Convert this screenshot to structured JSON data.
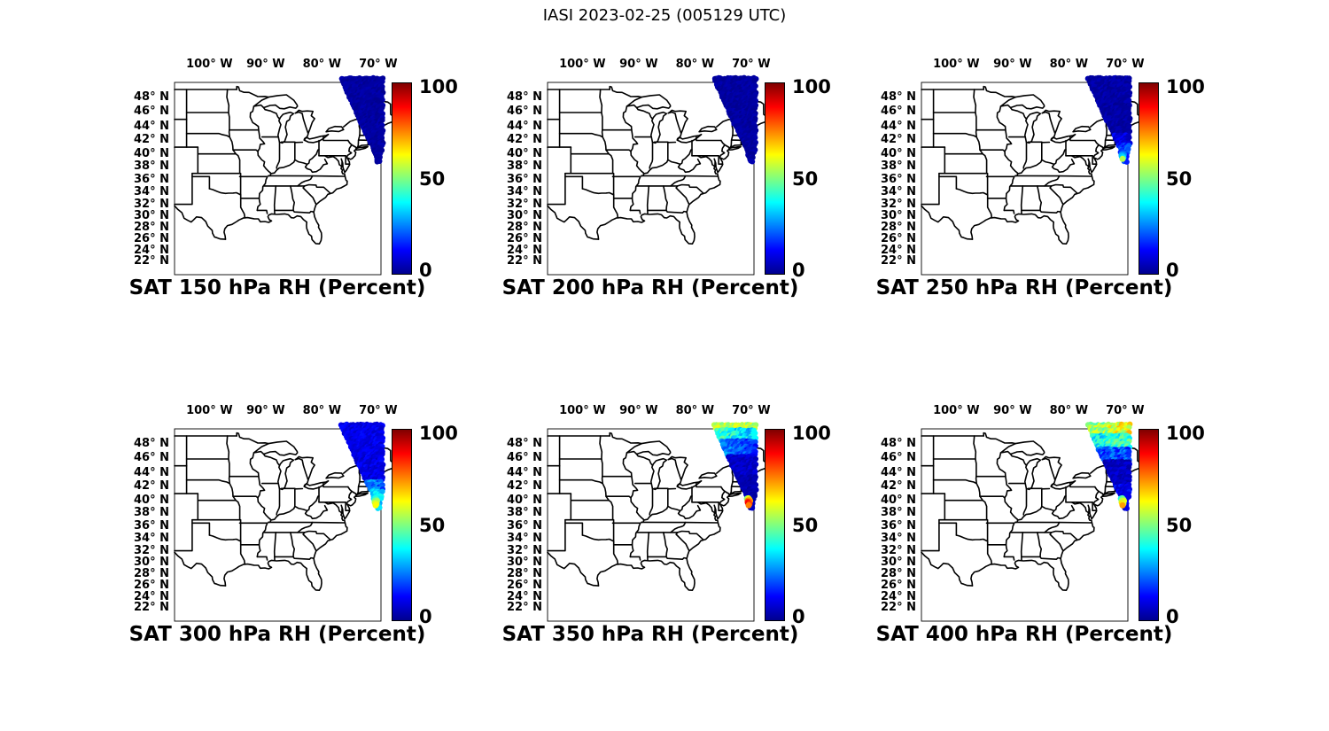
{
  "figure": {
    "title": "IASI 2023-02-25 (005129 UTC)",
    "background_color": "#ffffff",
    "text_color": "#000000",
    "map_line_color": "#000000"
  },
  "axes": {
    "projection": "mercator",
    "lon_range": [
      -106.2,
      -69.5
    ],
    "lat_range": [
      19.6,
      49.9
    ],
    "lon_tick_labels": [
      "100° W",
      "90° W",
      "80° W",
      "70° W"
    ],
    "lon_tick_values": [
      -100,
      -90,
      -80,
      -70
    ],
    "lat_tick_labels": [
      "48° N",
      "46° N",
      "44° N",
      "42° N",
      "40° N",
      "38° N",
      "36° N",
      "34° N",
      "32° N",
      "30° N",
      "28° N",
      "26° N",
      "24° N",
      "22° N"
    ],
    "lat_tick_values": [
      48,
      46,
      44,
      42,
      40,
      38,
      36,
      34,
      32,
      30,
      28,
      26,
      24,
      22
    ]
  },
  "colorbar": {
    "min": 0,
    "max": 100,
    "tick_labels": [
      "100",
      "50",
      "0"
    ],
    "tick_values": [
      100,
      50,
      0
    ],
    "colormap": "jet",
    "gradient_stops": [
      [
        0,
        "#00008f"
      ],
      [
        0.125,
        "#0000ff"
      ],
      [
        0.375,
        "#00ffff"
      ],
      [
        0.625,
        "#ffff00"
      ],
      [
        0.875,
        "#ff0000"
      ],
      [
        1,
        "#800000"
      ]
    ]
  },
  "chart_data": {
    "type": "scatter",
    "satellite": "IASI",
    "date": "2023-02-25",
    "time_utc": "005129",
    "variable": "RH",
    "units": "Percent",
    "panels": [
      {
        "title": "SAT 150 hPa RH (Percent)",
        "level_hPa": 150,
        "value_bands": [
          [
            38.5,
            50.8,
            0,
            4,
            0
          ]
        ],
        "tip_values": []
      },
      {
        "title": "SAT 200 hPa RH (Percent)",
        "level_hPa": 200,
        "value_bands": [
          [
            38.5,
            50.8,
            0,
            4,
            0
          ]
        ],
        "tip_values": []
      },
      {
        "title": "SAT 250 hPa RH (Percent)",
        "level_hPa": 250,
        "value_bands": [
          [
            43,
            50.8,
            0,
            5,
            0
          ],
          [
            41.3,
            43,
            4,
            14,
            0
          ],
          [
            38.5,
            41.3,
            12,
            24,
            0
          ]
        ],
        "tip_values": [
          15,
          18,
          22,
          25,
          24,
          28,
          30,
          32,
          35,
          55
        ]
      },
      {
        "title": "SAT 300 hPa RH (Percent)",
        "level_hPa": 300,
        "value_bands": [
          [
            46,
            50.8,
            6,
            14,
            0
          ],
          [
            43,
            46,
            5,
            14,
            0
          ],
          [
            41.5,
            43,
            15,
            32,
            0
          ],
          [
            38.5,
            41.5,
            28,
            40,
            0
          ]
        ],
        "tip_values": [
          35,
          40,
          45,
          48,
          52,
          55,
          50,
          58,
          60,
          62
        ]
      },
      {
        "title": "SAT 350 hPa RH (Percent)",
        "level_hPa": 350,
        "value_bands": [
          [
            50.05,
            50.8,
            48,
            62,
            0
          ],
          [
            48.3,
            50.05,
            22,
            40,
            12
          ],
          [
            46.3,
            48.3,
            10,
            22,
            10
          ],
          [
            43.5,
            46.3,
            3,
            10,
            0
          ],
          [
            38.5,
            43.5,
            1,
            6,
            0
          ]
        ],
        "tip_values": [
          50,
          60,
          68,
          75,
          72,
          78,
          85,
          88,
          82,
          75
        ]
      },
      {
        "title": "SAT 400 hPa RH (Percent)",
        "level_hPa": 400,
        "value_bands": [
          [
            49.3,
            50.8,
            40,
            62,
            -10
          ],
          [
            47.5,
            49.3,
            28,
            48,
            -6
          ],
          [
            45.8,
            47.5,
            12,
            30,
            0
          ],
          [
            42,
            45.8,
            2,
            10,
            0
          ],
          [
            38.5,
            42,
            6,
            16,
            0
          ]
        ],
        "tip_values": [
          40,
          45,
          50,
          55,
          58,
          62,
          55,
          65,
          60,
          72
        ]
      }
    ],
    "swath": {
      "top_lat": 50.4,
      "bottom_lat": 38.55,
      "lat_step": 0.35,
      "lon_step": 0.35,
      "left_lon_at_top": -76.3,
      "left_ref_lat": 50.0,
      "left_slope": 0.6,
      "left_break_lat": 41.0,
      "left_tail_slope": 0.37,
      "right_lon": -69.15,
      "right_taper_lat": 41.5,
      "right_taper_slope": 0.21,
      "dot_radius": 3.1,
      "tip_cluster_points": [
        [
          -70.75,
          40.25
        ],
        [
          -70.5,
          40.3
        ],
        [
          -70.3,
          40.1
        ],
        [
          -70.6,
          39.95
        ],
        [
          -70.2,
          39.9
        ],
        [
          -70.35,
          39.8
        ],
        [
          -70.6,
          39.75
        ],
        [
          -70.55,
          39.6
        ],
        [
          -70.3,
          39.45
        ],
        [
          -70.45,
          39.25
        ]
      ]
    }
  }
}
